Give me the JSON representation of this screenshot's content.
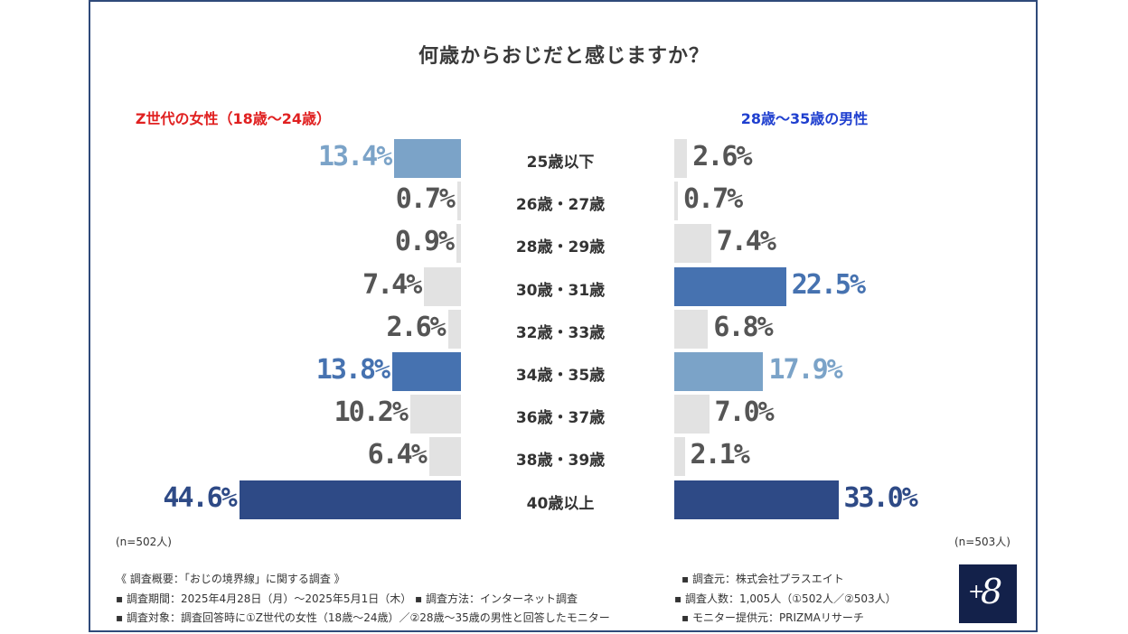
{
  "chart_data": {
    "type": "bar",
    "orientation": "horizontal-butterfly",
    "title": "何歳からおじだと感じますか？",
    "categories": [
      "25歳以下",
      "26歳・27歳",
      "28歳・29歳",
      "30歳・31歳",
      "32歳・33歳",
      "34歳・35歳",
      "36歳・37歳",
      "38歳・39歳",
      "40歳以上"
    ],
    "series": [
      {
        "name": "Z世代の女性（18歳～24歳）",
        "side": "left",
        "values": [
          13.4,
          0.7,
          0.9,
          7.4,
          2.6,
          13.8,
          10.2,
          6.4,
          44.6
        ],
        "labels": [
          "13.4%",
          "0.7%",
          "0.9%",
          "7.4%",
          "2.6%",
          "13.8%",
          "10.2%",
          "6.4%",
          "44.6%"
        ],
        "rank": [
          3,
          0,
          0,
          0,
          0,
          2,
          0,
          0,
          1
        ],
        "n_label": "(n=502人)"
      },
      {
        "name": "28歳～35歳の男性",
        "side": "right",
        "values": [
          2.6,
          0.7,
          7.4,
          22.5,
          6.8,
          17.9,
          7.0,
          2.1,
          33.0
        ],
        "labels": [
          "2.6%",
          "0.7%",
          "7.4%",
          "22.5%",
          "6.8%",
          "17.9%",
          "7.0%",
          "2.1%",
          "33.0%"
        ],
        "rank": [
          0,
          0,
          0,
          2,
          0,
          3,
          0,
          0,
          1
        ],
        "n_label": "(n=503人)"
      }
    ],
    "xlim": [
      0,
      50
    ],
    "grid": false
  },
  "colors": {
    "rank1": "#2e4a86",
    "rank2": "#4672b0",
    "rank3": "#7ba3c8",
    "other_bar": "#e2e2e2",
    "other_text": "#555555",
    "left_label": "#e02020",
    "right_label": "#1f3fcf",
    "frame": "#2f4a7a"
  },
  "footer": {
    "summary": "《 調査概要：「おじの境界線」に関する調査 》",
    "period": "▪ 調査期間：2025年4月28日（月）～2025年5月1日（木） ▪ 調査方法：インターネット調査",
    "target": "▪ 調査対象：調査回答時に①Z世代の女性（18歳～24歳）／②28歳～35歳の男性と回答したモニター",
    "source": "▪ 調査元：株式会社プラスエイト",
    "count": "▪ 調査人数：1,005人（①502人／②503人）",
    "provider": "▪ モニター提供元：PRIZMAリサーチ"
  },
  "logo": {
    "plus": "+",
    "eight": "8",
    "icon": "plus-eight-logo"
  }
}
